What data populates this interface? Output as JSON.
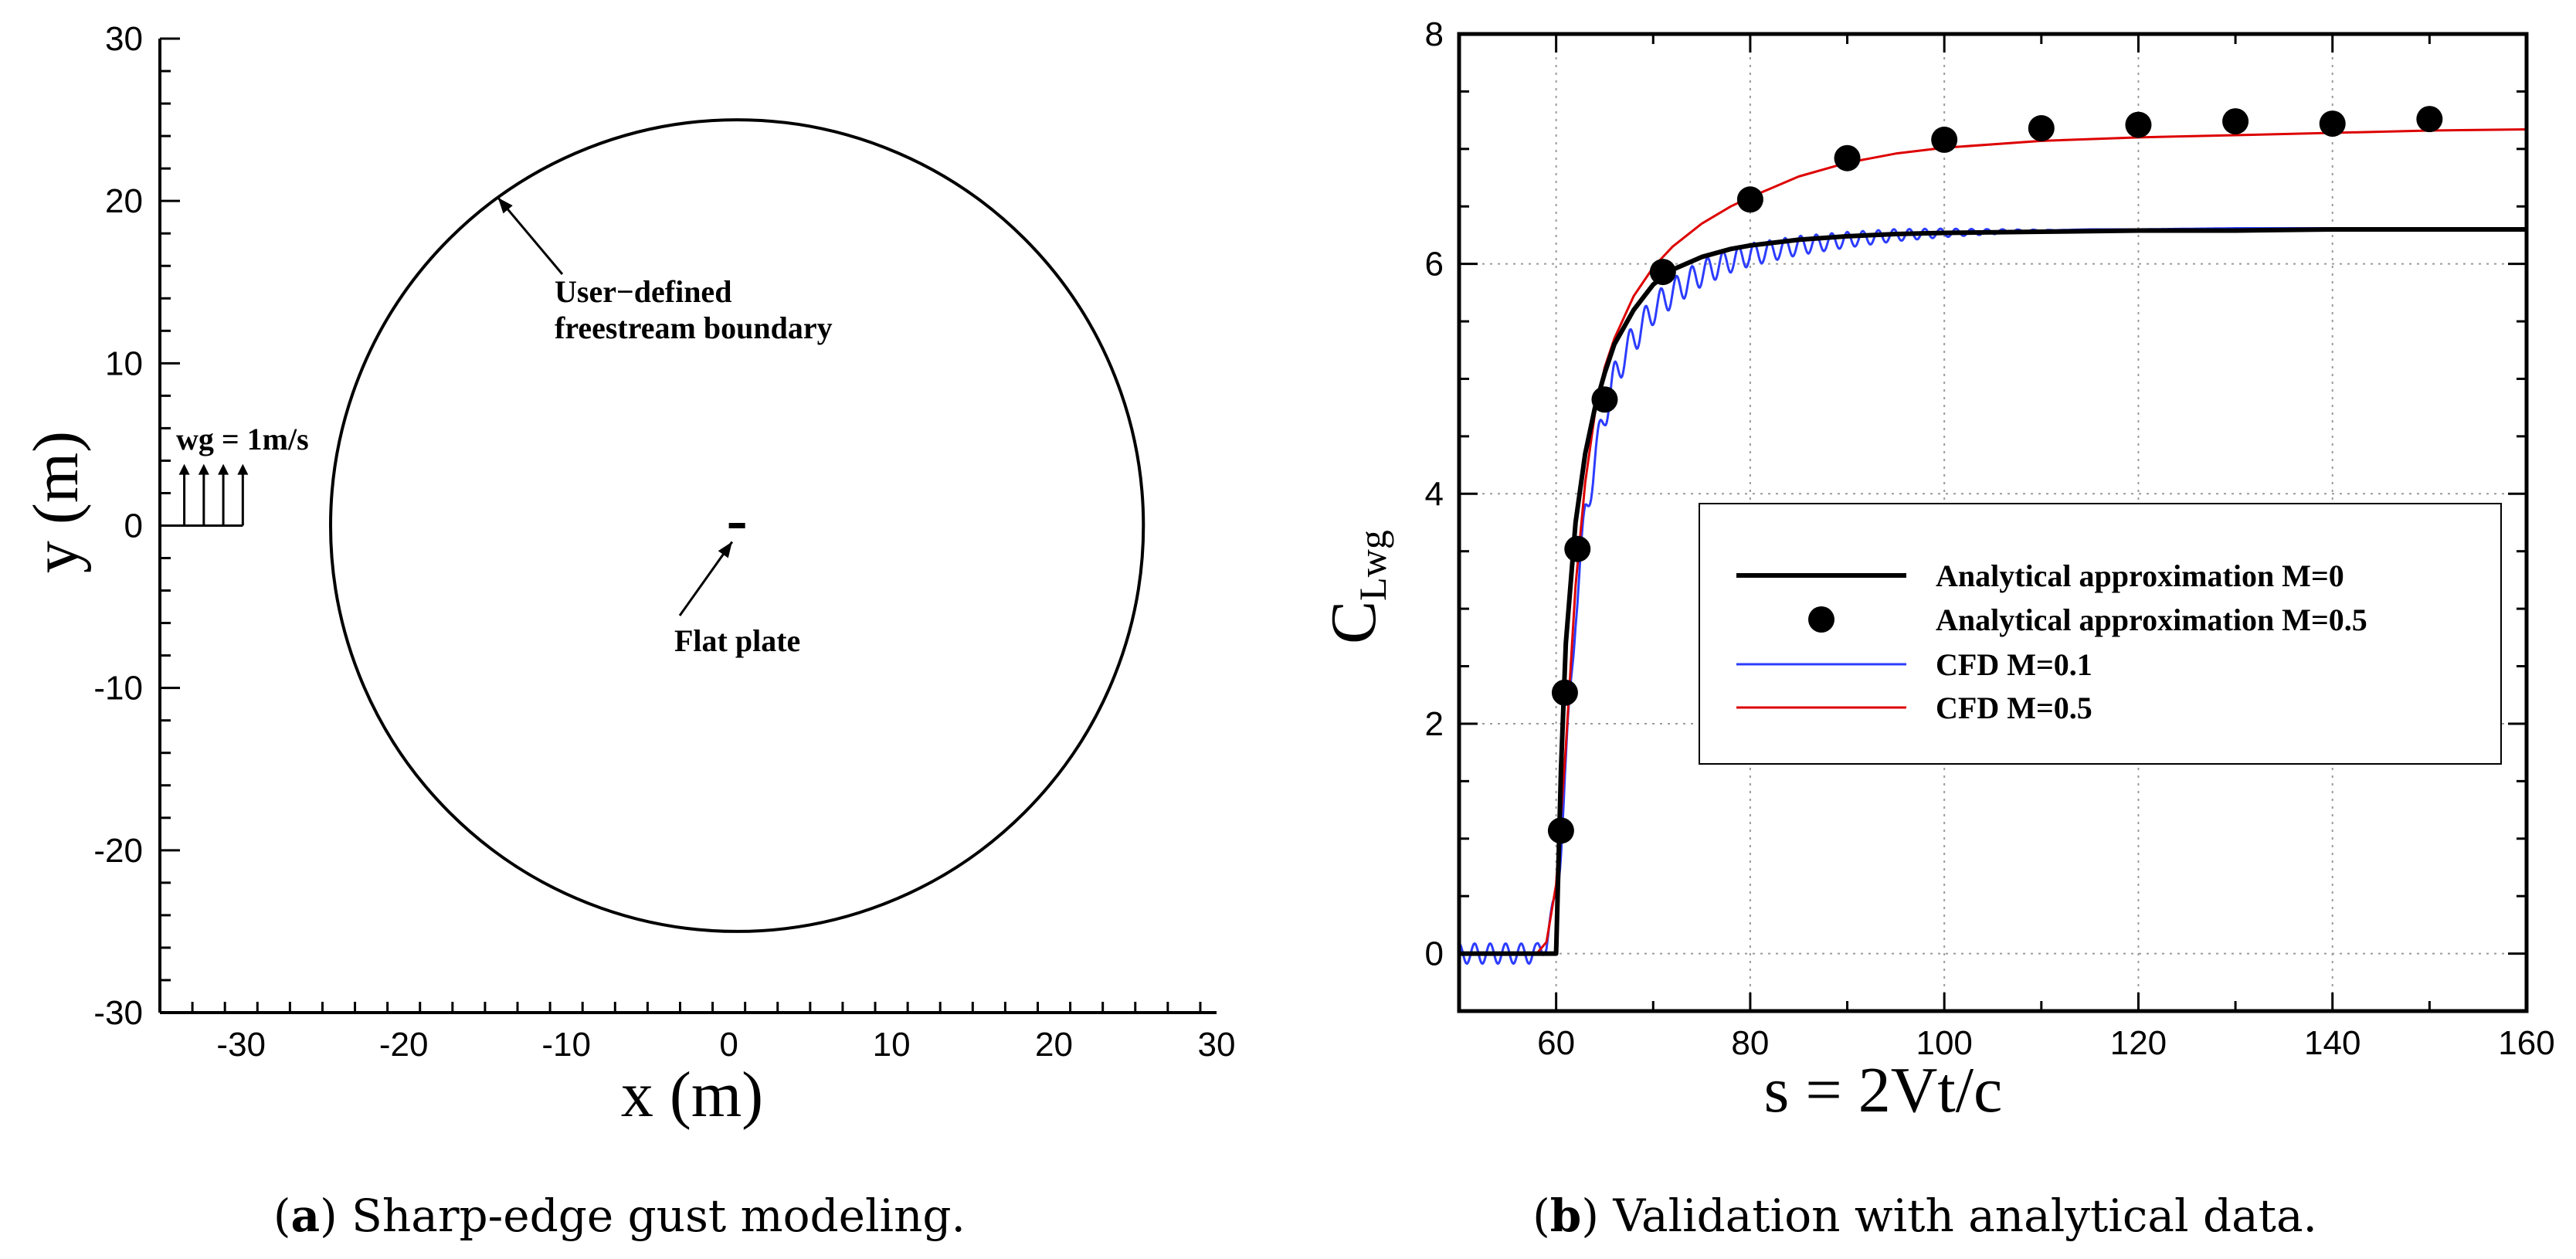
{
  "chart_data": [
    {
      "type": "line",
      "subtitle_letter": "a",
      "caption": "Sharp-edge gust modeling.",
      "xlabel": "x (m)",
      "ylabel": "y (m)",
      "xlim": [
        -35,
        30
      ],
      "ylim": [
        -30,
        30
      ],
      "x_ticks": [
        -30,
        -20,
        -10,
        0,
        10,
        20,
        30
      ],
      "y_ticks": [
        -30,
        -20,
        -10,
        0,
        10,
        20,
        30
      ],
      "x_tick_labels": [
        "-30",
        "-20",
        "-10",
        "0",
        "10",
        "20",
        "30"
      ],
      "y_tick_labels": [
        "-30",
        "-20",
        "-10",
        "0",
        "10",
        "20",
        "30"
      ],
      "grid": false,
      "boundary_circle": {
        "center": [
          0.5,
          0
        ],
        "radius": 25
      },
      "flat_plate": {
        "x_start": 0,
        "x_end": 1,
        "y": 0
      },
      "gust_arrows_x": [
        -33.5,
        -32.3,
        -31.1,
        -29.9
      ],
      "gust_arrows_y": [
        0,
        3.8
      ],
      "annotations": {
        "boundary_line1": "User−defined",
        "boundary_line2": "freestream boundary",
        "plate": "Flat plate",
        "gust": "wg = 1m/s"
      }
    },
    {
      "type": "line",
      "subtitle_letter": "b",
      "caption": "Validation with analytical data.",
      "xlabel": "s = 2Vt/c",
      "ylabel_main": "C",
      "ylabel_sub": "Lwg",
      "xlim": [
        50,
        160
      ],
      "ylim": [
        -0.5,
        8
      ],
      "x_ticks": [
        60,
        80,
        100,
        120,
        140,
        160
      ],
      "y_ticks": [
        0,
        2,
        4,
        6,
        8
      ],
      "x_tick_labels": [
        "60",
        "80",
        "100",
        "120",
        "140",
        "160"
      ],
      "y_tick_labels": [
        "0",
        "2",
        "4",
        "6",
        "8"
      ],
      "grid": true,
      "legend_position": "center-right",
      "series": [
        {
          "name": "Analytical approximation M=0",
          "style": "line",
          "color": "#000000",
          "x": [
            50,
            60,
            60.5,
            61,
            62,
            63,
            64,
            65,
            66,
            68,
            70,
            72,
            75,
            78,
            80,
            85,
            90,
            95,
            100,
            110,
            120,
            130,
            140,
            150,
            160
          ],
          "y": [
            0,
            0,
            1.6,
            2.7,
            3.75,
            4.35,
            4.75,
            5.05,
            5.3,
            5.6,
            5.82,
            5.95,
            6.06,
            6.13,
            6.16,
            6.21,
            6.24,
            6.26,
            6.27,
            6.28,
            6.29,
            6.29,
            6.3,
            6.3,
            6.3
          ]
        },
        {
          "name": "Analytical approximation M=0.5",
          "style": "markers",
          "color": "#000000",
          "x": [
            60.5,
            60.9,
            62.2,
            65,
            71,
            80,
            90,
            100,
            110,
            120,
            130,
            140,
            150
          ],
          "y": [
            1.07,
            2.27,
            3.52,
            4.82,
            5.93,
            6.56,
            6.92,
            7.08,
            7.18,
            7.21,
            7.24,
            7.22,
            7.26
          ]
        },
        {
          "name": "CFD M=0.1",
          "style": "line",
          "color": "#2c3cff",
          "x": [
            50,
            58,
            59,
            60,
            60.5,
            61,
            61.5,
            62,
            63,
            64,
            65,
            66,
            67,
            68,
            70,
            72,
            75,
            78,
            80,
            85,
            90,
            95,
            100,
            105,
            110,
            115,
            120,
            130,
            140,
            150,
            160
          ],
          "y": [
            0,
            0,
            0.1,
            0.5,
            1.0,
            1.6,
            2.3,
            3.0,
            3.8,
            4.3,
            4.7,
            5.0,
            5.2,
            5.35,
            5.6,
            5.75,
            5.92,
            6.03,
            6.08,
            6.16,
            6.21,
            6.25,
            6.27,
            6.28,
            6.29,
            6.3,
            6.3,
            6.31,
            6.31,
            6.31,
            6.31
          ],
          "oscillation": {
            "start": 50,
            "end": 112,
            "period": 1.6,
            "amplitude": 0.16
          }
        },
        {
          "name": "CFD M=0.5",
          "style": "line",
          "color": "#dd0000",
          "x": [
            50,
            58,
            59,
            60,
            61,
            62,
            63,
            64,
            65,
            66,
            68,
            70,
            72,
            75,
            78,
            80,
            85,
            90,
            95,
            100,
            110,
            120,
            130,
            140,
            150,
            160
          ],
          "y": [
            0,
            0,
            0.1,
            0.6,
            1.8,
            3.2,
            4.1,
            4.7,
            5.1,
            5.35,
            5.72,
            5.97,
            6.15,
            6.35,
            6.5,
            6.58,
            6.76,
            6.88,
            6.96,
            7.01,
            7.07,
            7.1,
            7.12,
            7.14,
            7.16,
            7.17
          ]
        }
      ]
    }
  ]
}
